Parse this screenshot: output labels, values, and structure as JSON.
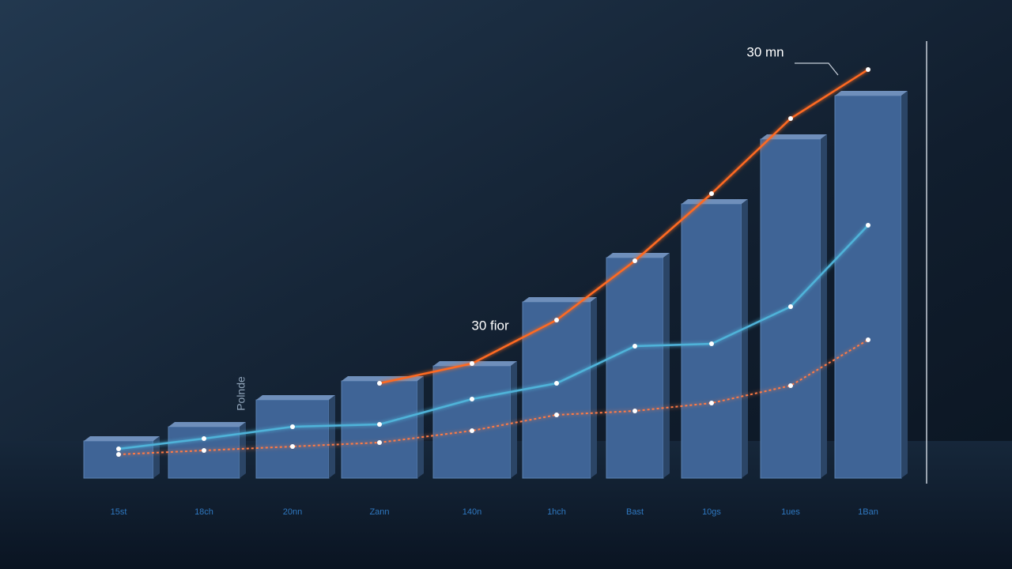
{
  "chart_data": {
    "type": "bar",
    "categories": [
      "15st",
      "18ch",
      "20nn",
      "Zann",
      "140n",
      "1hch",
      "Bast",
      "10gs",
      "1ues",
      "1Ban"
    ],
    "values": [
      47,
      65,
      99,
      123,
      142,
      223,
      279,
      347,
      429,
      484
    ],
    "color": "#3f6496",
    "ylim": [
      0,
      540
    ],
    "lines": [
      {
        "color": "#4fb3d9",
        "values": [
          37,
          50,
          65,
          68,
          100,
          120,
          167,
          170,
          217,
          320
        ]
      },
      {
        "color": "#ff7a45",
        "values": [
          30,
          35,
          40,
          45,
          60,
          80,
          85,
          95,
          117,
          175
        ]
      },
      {
        "color": "#ff6a20",
        "values": [
          null,
          null,
          null,
          120,
          145,
          200,
          275,
          360,
          455,
          517
        ]
      }
    ],
    "annotations": [
      "30 mn",
      "30 fior",
      "Polnde"
    ]
  }
}
